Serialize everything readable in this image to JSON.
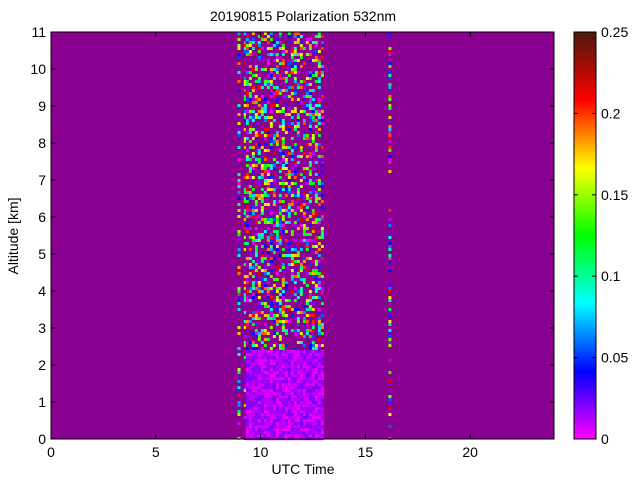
{
  "chart_data": {
    "type": "heatmap",
    "title": "20190815 Polarization 532nm",
    "xlabel": "UTC Time",
    "ylabel": "Altitude [km]",
    "xlim": [
      0,
      24
    ],
    "ylim": [
      0,
      11
    ],
    "x_ticks": [
      0,
      5,
      10,
      15,
      20
    ],
    "y_ticks": [
      0,
      1,
      2,
      3,
      4,
      5,
      6,
      7,
      8,
      9,
      10,
      11
    ],
    "colorbar": {
      "range": [
        0,
        0.25
      ],
      "ticks": [
        0,
        0.05,
        0.1,
        0.15,
        0.2,
        0.25
      ],
      "tick_labels": [
        "0",
        "0.05",
        "0.1",
        "0.15",
        "0.2",
        "0.25"
      ],
      "colormap": [
        "#ff00ff",
        "#0000ff",
        "#00ffff",
        "#00ff00",
        "#ffff00",
        "#ff0000",
        "#4a1a0a"
      ]
    },
    "background_value": 0.0,
    "background_color": "#8a0090",
    "regions": [
      {
        "t_start": 8.9,
        "t_end": 9.0,
        "alt_start": 0,
        "alt_end": 11,
        "pattern": "noisy"
      },
      {
        "t_start": 9.2,
        "t_end": 9.3,
        "alt_start": 0,
        "alt_end": 11,
        "pattern": "noisy"
      },
      {
        "t_start": 9.3,
        "t_end": 12.9,
        "alt_start": 2.4,
        "alt_end": 11,
        "pattern": "noisy"
      },
      {
        "t_start": 9.3,
        "t_end": 12.9,
        "alt_start": 0,
        "alt_end": 2.4,
        "pattern": "low_depolarization",
        "value_range": [
          0,
          0.04
        ]
      },
      {
        "t_start": 16.1,
        "t_end": 16.2,
        "alt_start": 0,
        "alt_end": 11,
        "pattern": "noisy"
      }
    ]
  }
}
